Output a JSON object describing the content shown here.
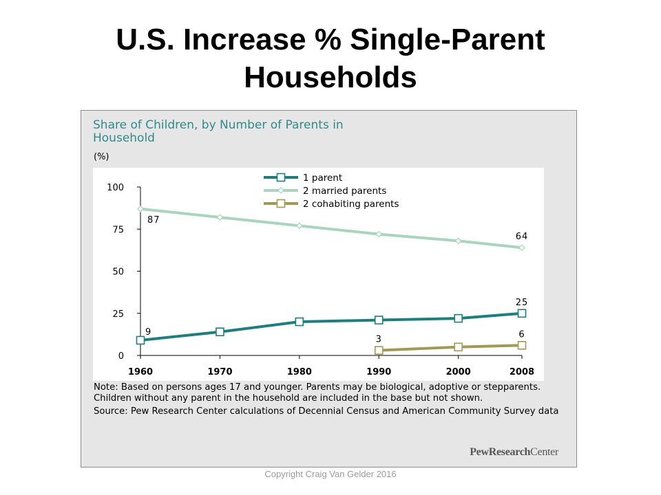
{
  "slide": {
    "title_line1": "U.S. Increase % Single-Parent",
    "title_line2": "Households",
    "copyright": "Copyright Craig Van Gelder 2016"
  },
  "chart": {
    "title_line1": "Share of Children, by Number of Parents in",
    "title_line2": "Household",
    "unit": "(%)",
    "note": "Note: Based on persons ages 17 and younger. Parents may be biological, adoptive or stepparents. Children without any parent in the household are included in the base but not shown.",
    "source": "Source: Pew Research Center calculations of Decennial Census and American Community Survey data",
    "logo_part1": "PewResearch",
    "logo_part2": "Center"
  },
  "colors": {
    "one_parent": "#1a7f7f",
    "married": "#a8d5bd",
    "cohabiting": "#a39a52",
    "title_teal": "#2e8b8b"
  },
  "chart_data": {
    "type": "line",
    "x": [
      1960,
      1970,
      1980,
      1990,
      2000,
      2008
    ],
    "x_tick_labels": [
      "1960",
      "1970",
      "1980",
      "1990",
      "2000",
      "2008"
    ],
    "y_ticks": [
      0,
      25,
      50,
      75,
      100
    ],
    "ylim": [
      0,
      100
    ],
    "legend_position": "top-center",
    "series": [
      {
        "name": "1 parent",
        "key": "one_parent",
        "marker": "square",
        "x": [
          1960,
          1970,
          1980,
          1990,
          2000,
          2008
        ],
        "values": [
          9,
          14,
          20,
          21,
          22,
          25
        ]
      },
      {
        "name": "2 married parents",
        "key": "married",
        "marker": "diamond",
        "x": [
          1960,
          1970,
          1980,
          1990,
          2000,
          2008
        ],
        "values": [
          87,
          82,
          77,
          72,
          68,
          64
        ]
      },
      {
        "name": "2 cohabiting parents",
        "key": "cohabiting",
        "marker": "square",
        "x": [
          1990,
          2000,
          2008
        ],
        "values": [
          3,
          5,
          6
        ]
      }
    ],
    "data_labels": [
      {
        "series": "one_parent",
        "x": 1960,
        "text": "9",
        "pos": "above-right"
      },
      {
        "series": "one_parent",
        "x": 2008,
        "text": "25",
        "pos": "above"
      },
      {
        "series": "married",
        "x": 1960,
        "text": "87",
        "pos": "below-right"
      },
      {
        "series": "married",
        "x": 2008,
        "text": "64",
        "pos": "above"
      },
      {
        "series": "cohabiting",
        "x": 1990,
        "text": "3",
        "pos": "above"
      },
      {
        "series": "cohabiting",
        "x": 2008,
        "text": "6",
        "pos": "above"
      }
    ]
  }
}
